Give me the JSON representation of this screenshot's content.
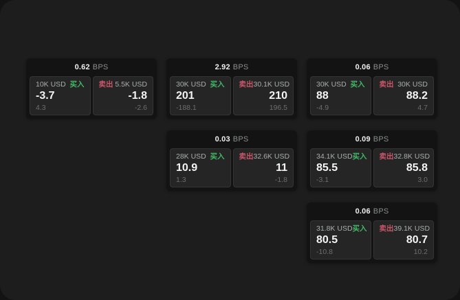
{
  "labels": {
    "buy": "买入",
    "sell": "卖出",
    "bps_unit": "BPS"
  },
  "colors": {
    "buy_green": "#43b768",
    "sell_red": "#c9566b",
    "surface": "#1c1d1c",
    "card": "#121312",
    "panel": "#242524"
  },
  "cards": [
    {
      "bps": "0.62",
      "buy": {
        "amount": "10K USD",
        "value": "-3.7",
        "sub": "4.3"
      },
      "sell": {
        "amount": "5.5K USD",
        "value": "-1.8",
        "sub": "-2.6"
      }
    },
    {
      "bps": "2.92",
      "buy": {
        "amount": "30K USD",
        "value": "201",
        "sub": "-188.1"
      },
      "sell": {
        "amount": "30.1K USD",
        "value": "210",
        "sub": "196.5"
      }
    },
    {
      "bps": "0.06",
      "buy": {
        "amount": "30K USD",
        "value": "88",
        "sub": "-4.9"
      },
      "sell": {
        "amount": "30K USD",
        "value": "88.2",
        "sub": "4.7"
      }
    },
    {
      "bps": "0.03",
      "buy": {
        "amount": "28K USD",
        "value": "10.9",
        "sub": "1.3"
      },
      "sell": {
        "amount": "32.6K USD",
        "value": "11",
        "sub": "-1.8"
      }
    },
    {
      "bps": "0.09",
      "buy": {
        "amount": "34.1K USD",
        "value": "85.5",
        "sub": "-3.1"
      },
      "sell": {
        "amount": "32.8K USD",
        "value": "85.8",
        "sub": "3.0"
      }
    },
    {
      "bps": "0.06",
      "buy": {
        "amount": "31.8K USD",
        "value": "80.5",
        "sub": "-10.8"
      },
      "sell": {
        "amount": "39.1K USD",
        "value": "80.7",
        "sub": "10.2"
      }
    }
  ]
}
